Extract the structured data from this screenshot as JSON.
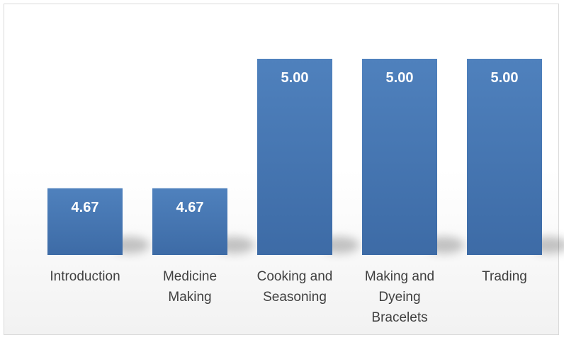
{
  "chart_data": {
    "type": "bar",
    "categories": [
      [
        "Introduction"
      ],
      [
        "Medicine",
        "Making"
      ],
      [
        "Cooking and",
        "Seasoning"
      ],
      [
        "Making and",
        "Dyeing",
        "Bracelets"
      ],
      [
        "Trading"
      ]
    ],
    "values": [
      4.67,
      4.67,
      5.0,
      5.0,
      5.0
    ],
    "value_labels": [
      "4.67",
      "4.67",
      "5.00",
      "5.00",
      "5.00"
    ],
    "title": "",
    "xlabel": "",
    "ylabel": "",
    "ylim": [
      4.5,
      5.0
    ],
    "grid": false,
    "legend": "none",
    "bar_color": "#4a7ebb"
  }
}
